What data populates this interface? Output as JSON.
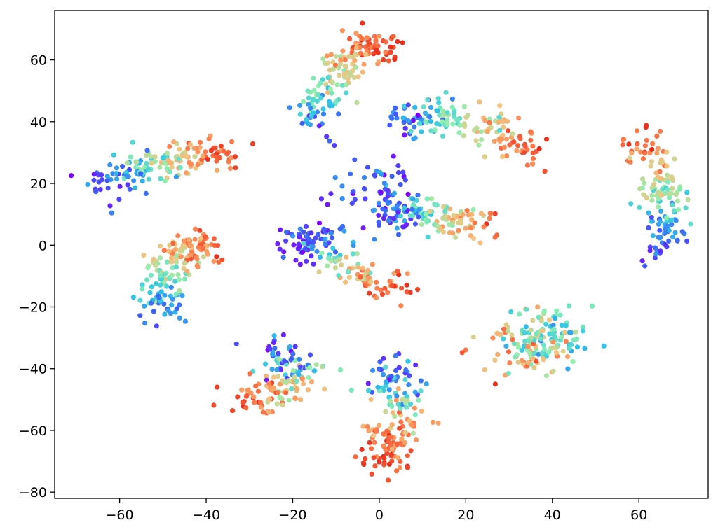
{
  "chart_data": {
    "type": "scatter",
    "title": "",
    "xlabel": "",
    "ylabel": "",
    "xlim": [
      -75,
      76
    ],
    "ylim": [
      -82,
      76
    ],
    "x_ticks": [
      -60,
      -40,
      -20,
      0,
      20,
      40,
      60
    ],
    "y_ticks": [
      -80,
      -60,
      -40,
      -20,
      0,
      20,
      40,
      60
    ],
    "x_tick_labels": [
      "−60",
      "−40",
      "−20",
      "0",
      "20",
      "40",
      "60"
    ],
    "y_tick_labels": [
      "−80",
      "−60",
      "−40",
      "−20",
      "0",
      "20",
      "40",
      "60"
    ],
    "colormap": "rainbow",
    "colormap_stops": [
      "#7f00ff",
      "#3f5efb",
      "#2fc7e6",
      "#8ff0b0",
      "#f2c47f",
      "#ff7a4a",
      "#e8301e"
    ],
    "grid": false,
    "legend": "none",
    "clusters": [
      {
        "name": "",
        "path": [
          [
            -64,
            20,
            0.1
          ],
          [
            -55,
            25,
            0.35
          ],
          [
            -45,
            28,
            0.65
          ],
          [
            -35,
            30,
            0.92
          ]
        ],
        "n": 170,
        "spread": 2.8
      },
      {
        "name": "",
        "path": [
          [
            -16,
            38,
            0.12
          ],
          [
            -12,
            50,
            0.5
          ],
          [
            -6,
            62,
            0.75
          ],
          [
            2,
            65,
            0.97
          ]
        ],
        "n": 170,
        "spread": 3.0
      },
      {
        "name": "",
        "path": [
          [
            -25,
            -35,
            0.05
          ],
          [
            -18,
            -40,
            0.5
          ],
          [
            -24,
            -47,
            0.75
          ],
          [
            -31,
            -52,
            0.97
          ]
        ],
        "n": 150,
        "spread": 3.2
      },
      {
        "name": "",
        "path": [
          [
            -49,
            -22,
            0.15
          ],
          [
            -50,
            -10,
            0.5
          ],
          [
            -46,
            -2,
            0.7
          ],
          [
            -38,
            0,
            0.95
          ]
        ],
        "n": 170,
        "spread": 3.0
      },
      {
        "name": "",
        "path": [
          [
            -20,
            0,
            0.05
          ],
          [
            -13,
            2,
            0.2
          ],
          [
            -6,
            -10,
            0.65
          ],
          [
            6,
            -15,
            0.96
          ]
        ],
        "n": 150,
        "spread": 3.0
      },
      {
        "name": "",
        "path": [
          [
            5,
            40,
            0.1
          ],
          [
            14,
            42,
            0.4
          ],
          [
            25,
            38,
            0.65
          ],
          [
            36,
            30,
            0.95
          ]
        ],
        "n": 160,
        "spread": 2.8
      },
      {
        "name": "",
        "path": [
          [
            2,
            10,
            0.1
          ],
          [
            10,
            10,
            0.4
          ],
          [
            18,
            8,
            0.65
          ],
          [
            25,
            6,
            0.95
          ]
        ],
        "n": 130,
        "spread": 2.8
      },
      {
        "name": "",
        "path": [
          [
            65,
            -2,
            0.15
          ],
          [
            67,
            10,
            0.35
          ],
          [
            65,
            22,
            0.6
          ],
          [
            60,
            36,
            0.97
          ]
        ],
        "n": 150,
        "spread": 2.6
      },
      {
        "name": "",
        "path": [
          [
            3,
            -40,
            0.1
          ],
          [
            4,
            -50,
            0.5
          ],
          [
            3,
            -62,
            0.85
          ],
          [
            1,
            -71,
            0.97
          ]
        ],
        "n": 170,
        "spread": 3.2
      },
      {
        "name": "",
        "path": [
          [
            35,
            -30,
            0.6
          ],
          [
            42,
            -30,
            0.3
          ],
          [
            30,
            -35,
            0.9
          ]
        ],
        "n": 170,
        "spread": 5.0
      },
      {
        "name": "",
        "path": [
          [
            -8,
            15,
            0.1
          ],
          [
            0,
            20,
            0.15
          ],
          [
            5,
            12,
            0.2
          ]
        ],
        "n": 60,
        "spread": 4.0
      }
    ]
  }
}
